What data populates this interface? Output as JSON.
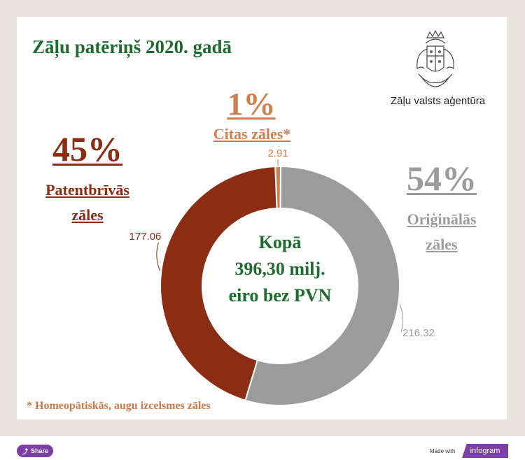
{
  "header": {
    "title": "Zāļu patēriņš 2020. gadā",
    "agency_name": "Zāļu valsts aģentūra"
  },
  "colors": {
    "generic": "#8b2d12",
    "other": "#d0804f",
    "original": "#9b9b9b",
    "title_green": "#1e6b2e"
  },
  "segments": {
    "other": {
      "percent": "1%",
      "label": "Citas zāles*"
    },
    "generic": {
      "percent": "45%",
      "label_line1": "Patentbrīvās",
      "label_line2": "zāles"
    },
    "original": {
      "percent": "54%",
      "label_line1": "Oriģinālās",
      "label_line2": "zāles"
    }
  },
  "center": {
    "line1": "Kopā",
    "line2": "396,30 milj.",
    "line3": "eiro bez PVN"
  },
  "footnote": "* Homeopātiskās, augu izcelsmes zāles",
  "chart_data": {
    "type": "pie",
    "title": "Zāļu patēriņš 2020. gadā",
    "categories": [
      "Citas zāles*",
      "Oriģinālās zāles",
      "Patentbrīvās zāles"
    ],
    "values": [
      2.91,
      216.32,
      177.06
    ],
    "value_labels": [
      "2.91",
      "216.32",
      "177.06"
    ],
    "percent_labels": [
      "1%",
      "54%",
      "45%"
    ],
    "total_label": "396,30 milj. eiro bez PVN",
    "donut": true
  },
  "footer": {
    "share_label": "Share",
    "made_with": "Made with",
    "brand": "infogram"
  }
}
